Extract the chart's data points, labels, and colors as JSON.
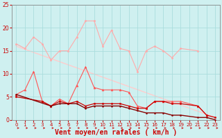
{
  "bg_color": "#cff0f0",
  "grid_color": "#aadddd",
  "xlabel": "Vent moyen/en rafales ( km/h )",
  "xlabel_color": "#cc0000",
  "xlabel_fontsize": 7,
  "tick_color": "#cc0000",
  "xlim": [
    -0.5,
    23.5
  ],
  "ylim": [
    0,
    25
  ],
  "yticks": [
    0,
    5,
    10,
    15,
    20,
    25
  ],
  "xticks": [
    0,
    1,
    2,
    3,
    4,
    5,
    6,
    7,
    8,
    9,
    10,
    11,
    12,
    13,
    14,
    15,
    16,
    17,
    18,
    19,
    20,
    21,
    22,
    23
  ],
  "series": [
    {
      "x": [
        0,
        1,
        2,
        3,
        4,
        5,
        6,
        7,
        8,
        9,
        10,
        11,
        12,
        13,
        14,
        15,
        16,
        17,
        18,
        19,
        21
      ],
      "y": [
        16.5,
        15.5,
        18.0,
        16.5,
        13.0,
        15.0,
        15.0,
        18.0,
        21.5,
        21.5,
        16.0,
        19.5,
        15.5,
        15.0,
        10.5,
        15.0,
        16.0,
        15.0,
        13.5,
        15.5,
        15.0
      ],
      "color": "#ffaaaa",
      "linewidth": 0.8,
      "marker": "o",
      "markersize": 1.8,
      "zorder": 2
    },
    {
      "x": [
        0,
        1,
        2,
        3,
        4,
        5,
        6,
        7,
        8,
        9,
        10,
        11,
        12,
        13,
        14,
        15,
        16,
        17,
        18,
        19,
        21,
        22
      ],
      "y": [
        5.5,
        6.5,
        10.5,
        4.0,
        3.0,
        4.5,
        3.5,
        7.5,
        11.5,
        7.0,
        6.5,
        6.5,
        6.5,
        6.0,
        3.0,
        2.5,
        4.0,
        4.0,
        4.0,
        4.0,
        3.0,
        1.0
      ],
      "color": "#ff5555",
      "linewidth": 0.8,
      "marker": "^",
      "markersize": 2.2,
      "zorder": 3
    },
    {
      "x": [
        0,
        3,
        4,
        5,
        6,
        7,
        8,
        9,
        10,
        11,
        12,
        13,
        14,
        15,
        16,
        17,
        18,
        19,
        21,
        22,
        23
      ],
      "y": [
        5.0,
        4.0,
        3.0,
        4.0,
        3.5,
        4.0,
        3.0,
        3.5,
        3.5,
        3.5,
        3.5,
        3.0,
        2.5,
        2.5,
        4.0,
        4.0,
        3.5,
        3.5,
        3.0,
        1.0,
        0.5
      ],
      "color": "#cc0000",
      "linewidth": 0.9,
      "marker": "o",
      "markersize": 1.8,
      "zorder": 4
    },
    {
      "x": [
        0,
        4,
        5,
        6,
        7,
        8,
        9,
        10,
        11,
        12,
        13,
        14,
        15,
        16,
        17,
        18,
        19,
        21,
        22,
        23
      ],
      "y": [
        5.5,
        3.0,
        3.5,
        3.5,
        3.5,
        2.5,
        3.0,
        3.0,
        3.0,
        3.0,
        2.5,
        2.0,
        1.5,
        1.5,
        1.5,
        1.0,
        1.0,
        0.5,
        0.5,
        0.0
      ],
      "color": "#880000",
      "linewidth": 1.0,
      "marker": "o",
      "markersize": 1.5,
      "zorder": 4
    },
    {
      "x": [
        0,
        23
      ],
      "y": [
        16.0,
        0.5
      ],
      "color": "#ffcccc",
      "linewidth": 1.0,
      "marker": "none",
      "markersize": 0,
      "zorder": 1
    }
  ],
  "arrow_color": "#cc0000",
  "spine_color": "#888888"
}
